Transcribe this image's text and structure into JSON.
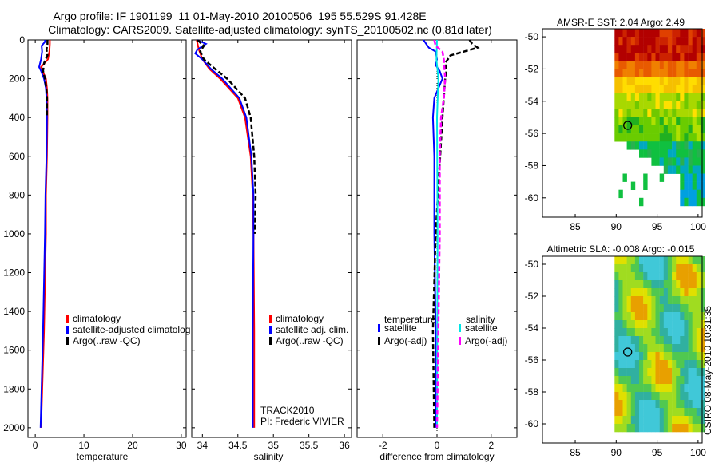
{
  "title": {
    "line1": "Argo profile: IF 1901199_11 01-May-2010 20100506_195 55.529S 91.428E",
    "line2": "Climatology: CARS2009. Satellite-adjusted climatology: synTS_20100502.nc (0.81d later)"
  },
  "depth_axis": {
    "ylim": [
      0,
      2050
    ],
    "ticks": [
      0,
      200,
      400,
      600,
      800,
      1000,
      1200,
      1400,
      1600,
      1800,
      2000
    ]
  },
  "chart_data": [
    {
      "type": "line",
      "id": "temperature",
      "xlabel": "temperature",
      "xlim": [
        -1.5,
        31
      ],
      "xticks": [
        0,
        10,
        20,
        30
      ],
      "y_reversed": true,
      "legend": [
        "climatology",
        "satellite-adjusted climatolog",
        "Argo(..raw -QC)"
      ],
      "colors": [
        "#ff0000",
        "#0000ff",
        "#000000"
      ],
      "series": [
        {
          "name": "climatology",
          "depth": [
            0,
            20,
            60,
            100,
            140,
            160,
            200,
            250,
            300,
            400,
            600,
            800,
            1000,
            1500,
            2000
          ],
          "values": [
            3.0,
            3.0,
            2.9,
            2.6,
            1.2,
            1.5,
            2.2,
            2.4,
            2.5,
            2.5,
            2.4,
            2.2,
            2.2,
            1.8,
            1.2
          ]
        },
        {
          "name": "satellite-adjusted",
          "depth": [
            0,
            10,
            30,
            60,
            100,
            140,
            160,
            200,
            250,
            300,
            400,
            600,
            800,
            1000,
            1500,
            2000
          ],
          "values": [
            2.0,
            2.0,
            1.3,
            1.4,
            1.2,
            0.8,
            1.2,
            1.8,
            2.2,
            2.3,
            2.4,
            2.3,
            2.1,
            2.0,
            1.6,
            1.1
          ]
        },
        {
          "name": "Argo",
          "depth": [
            0,
            20,
            50,
            80,
            120,
            160,
            200,
            260,
            300,
            400
          ],
          "values": [
            2.5,
            2.5,
            2.3,
            2.5,
            1.8,
            1.6,
            2.0,
            2.3,
            2.4,
            2.4
          ]
        }
      ]
    },
    {
      "type": "line",
      "id": "salinity",
      "xlabel": "salinity",
      "xlim": [
        33.85,
        36.1
      ],
      "xticks": [
        34,
        34.5,
        35,
        35.5,
        36
      ],
      "y_reversed": true,
      "legend": [
        "climatology",
        "satellite adj. clim.",
        "Argo(..raw -QC)"
      ],
      "colors": [
        "#ff0000",
        "#0000ff",
        "#000000"
      ],
      "annotation": [
        "TRACK2010",
        "PI: Frederic VIVIER"
      ],
      "series": [
        {
          "name": "climatology",
          "depth": [
            0,
            50,
            100,
            150,
            200,
            300,
            400,
            600,
            800,
            1000,
            1500,
            2000
          ],
          "values": [
            33.92,
            33.95,
            34.0,
            34.1,
            34.25,
            34.5,
            34.6,
            34.68,
            34.71,
            34.72,
            34.73,
            34.73
          ]
        },
        {
          "name": "satellite-adjusted",
          "depth": [
            0,
            20,
            50,
            70,
            100,
            150,
            200,
            300,
            400,
            600,
            800,
            1000,
            1500,
            2000
          ],
          "values": [
            33.92,
            34.05,
            33.93,
            33.9,
            34.0,
            34.12,
            34.28,
            34.52,
            34.62,
            34.69,
            34.72,
            34.72,
            34.71,
            34.71
          ]
        },
        {
          "name": "Argo",
          "depth": [
            0,
            30,
            60,
            100,
            150,
            200,
            300,
            400,
            600,
            800,
            1000
          ],
          "values": [
            33.93,
            34.02,
            33.97,
            34.02,
            34.18,
            34.35,
            34.6,
            34.68,
            34.73,
            34.75,
            34.74
          ]
        }
      ]
    },
    {
      "type": "line",
      "id": "difference",
      "xlabel": "difference from climatology",
      "xlim": [
        -2.95,
        2.95
      ],
      "xticks": [
        -2,
        0,
        2
      ],
      "y_reversed": true,
      "legend_headers": [
        "temperature",
        "salinity"
      ],
      "legend": [
        "satellite",
        "Argo(-adj)",
        "satellite",
        "Argo(-adj)"
      ],
      "colors": [
        "#0000ff",
        "#000000",
        "#00e5e5",
        "#ff00ff"
      ],
      "series": [
        {
          "name": "temperature satellite",
          "depth": [
            0,
            20,
            40,
            60,
            100,
            130,
            160,
            200,
            300,
            400,
            600,
            800,
            1000,
            1500,
            2000
          ],
          "values": [
            -0.5,
            -0.4,
            -0.3,
            -0.05,
            0.0,
            -0.05,
            0.1,
            0.2,
            -0.1,
            -0.15,
            -0.1,
            -0.1,
            -0.1,
            -0.05,
            -0.05
          ]
        },
        {
          "name": "temperature Argo",
          "depth": [
            0,
            20,
            40,
            60,
            80,
            120,
            160,
            200,
            300,
            400,
            1000,
            1500,
            2000
          ],
          "values": [
            1.2,
            1.3,
            1.5,
            1.0,
            0.5,
            0.3,
            0.35,
            0.3,
            0.25,
            0.2,
            -0.05,
            -0.15,
            -0.1
          ]
        },
        {
          "name": "salinity satellite",
          "depth": [
            0,
            100,
            200,
            400,
            1000,
            2000
          ],
          "values": [
            0.0,
            -0.02,
            0.05,
            0.0,
            0.02,
            0.0
          ]
        },
        {
          "name": "salinity Argo",
          "depth": [
            0,
            30,
            60,
            100,
            200,
            300,
            400,
            600,
            1000,
            2000
          ],
          "values": [
            -0.1,
            -0.05,
            0.2,
            0.25,
            0.3,
            0.25,
            0.15,
            0.1,
            0.1,
            0.0
          ]
        }
      ]
    },
    {
      "type": "heatmap",
      "id": "sst_map",
      "title": "AMSR-E SST: 2.04  Argo: 2.49",
      "xticks": [
        85,
        90,
        95,
        100
      ],
      "yticks": [
        -50,
        -52,
        -54,
        -56,
        -58,
        -60
      ],
      "xlim": [
        81,
        100.5
      ],
      "ylim": [
        -61.2,
        -49.5
      ],
      "marker": {
        "lon": 91.4,
        "lat": -55.5
      }
    },
    {
      "type": "heatmap",
      "id": "sla_map",
      "title": "Altimetric SLA: -0.008  Argo: -0.015",
      "xticks": [
        85,
        90,
        95,
        100
      ],
      "yticks": [
        -50,
        -52,
        -54,
        -56,
        -58,
        -60
      ],
      "xlim": [
        81,
        100.5
      ],
      "ylim": [
        -61.2,
        -49.5
      ],
      "marker": {
        "lon": 91.4,
        "lat": -55.5
      }
    }
  ],
  "credit": "CSIRO 08-May-2010 10:31:35"
}
